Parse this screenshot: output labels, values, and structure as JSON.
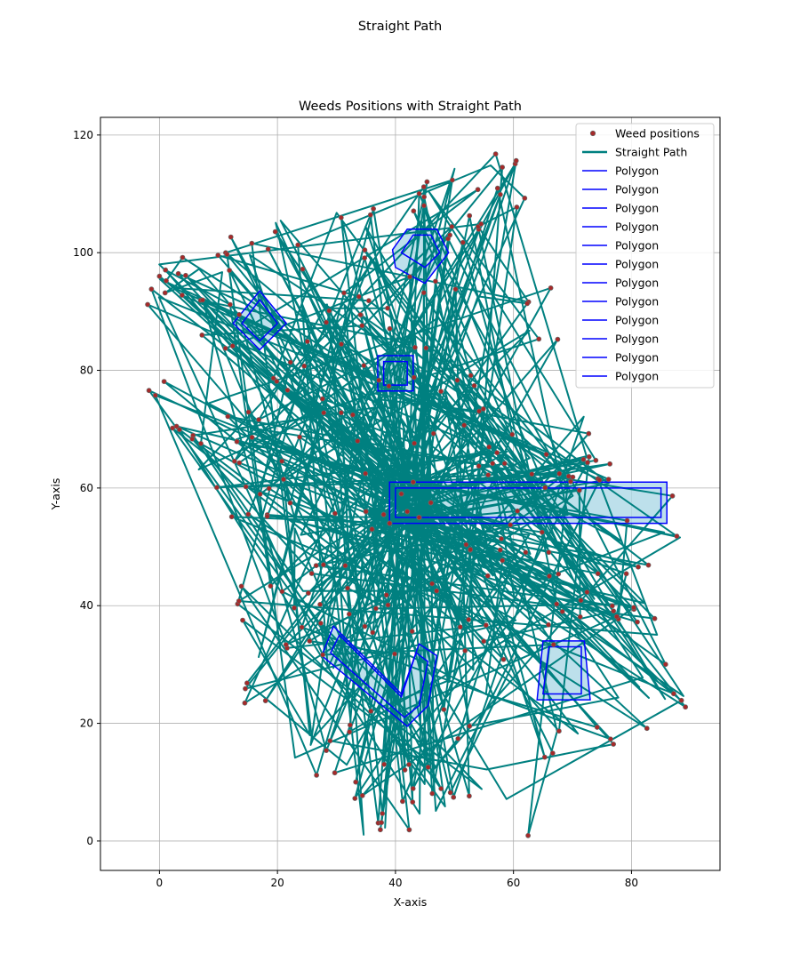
{
  "figure_title": "Straight Path",
  "chart_data": {
    "type": "scatter",
    "title": "Weeds Positions with Straight Path",
    "xlabel": "X-axis",
    "ylabel": "Y-axis",
    "xlim": [
      -10,
      95
    ],
    "ylim": [
      -5,
      123
    ],
    "xticks": [
      "0",
      "20",
      "40",
      "60",
      "80"
    ],
    "yticks": [
      "0",
      "20",
      "40",
      "60",
      "80",
      "100",
      "120"
    ],
    "grid": true,
    "legend_position": "top-right",
    "colors": {
      "weeds": "#a52a2a",
      "weed_edge": "#607070",
      "path": "#008080",
      "polygon": "#0000ff",
      "polygon_fill": "#add8e6"
    },
    "legend": [
      "Weed positions",
      "Straight Path",
      "Polygon",
      "Polygon",
      "Polygon",
      "Polygon",
      "Polygon",
      "Polygon",
      "Polygon",
      "Polygon",
      "Polygon",
      "Polygon",
      "Polygon",
      "Polygon"
    ],
    "polygons": [
      {
        "name": "Polygon",
        "points": [
          [
            40,
            97.5
          ],
          [
            45,
            94.8
          ],
          [
            49,
            100
          ],
          [
            47,
            104
          ],
          [
            42,
            104
          ],
          [
            39.5,
            100.5
          ]
        ]
      },
      {
        "name": "Polygon",
        "points": [
          [
            41,
            100
          ],
          [
            45,
            97.5
          ],
          [
            47.5,
            100
          ],
          [
            46,
            103
          ],
          [
            43,
            103
          ]
        ]
      },
      {
        "name": "Polygon",
        "points": [
          [
            12.5,
            88
          ],
          [
            17,
            93.5
          ],
          [
            21.5,
            88
          ],
          [
            17,
            83.5
          ]
        ]
      },
      {
        "name": "Polygon",
        "points": [
          [
            14,
            88
          ],
          [
            17,
            92
          ],
          [
            20,
            88
          ],
          [
            17,
            85
          ]
        ]
      },
      {
        "name": "Polygon",
        "points": [
          [
            37,
            82.5
          ],
          [
            43,
            82.5
          ],
          [
            43,
            76.5
          ],
          [
            37,
            76.5
          ]
        ]
      },
      {
        "name": "Polygon",
        "points": [
          [
            38,
            81.5
          ],
          [
            42,
            81.5
          ],
          [
            42,
            77.5
          ],
          [
            38,
            77.5
          ]
        ]
      },
      {
        "name": "Polygon",
        "points": [
          [
            39,
            61
          ],
          [
            86,
            61
          ],
          [
            86,
            54
          ],
          [
            39,
            54
          ]
        ]
      },
      {
        "name": "Polygon",
        "points": [
          [
            40,
            60
          ],
          [
            85,
            60
          ],
          [
            85,
            55
          ],
          [
            40,
            55
          ]
        ]
      },
      {
        "name": "Polygon",
        "points": [
          [
            27.5,
            31.5
          ],
          [
            29.5,
            36.5
          ],
          [
            41,
            25
          ],
          [
            44,
            33.5
          ],
          [
            47,
            31.5
          ],
          [
            45.5,
            23
          ],
          [
            42,
            19.5
          ]
        ]
      },
      {
        "name": "Polygon",
        "points": [
          [
            29,
            32
          ],
          [
            30.5,
            35
          ],
          [
            41,
            24.5
          ],
          [
            43.5,
            32
          ],
          [
            45.5,
            30.5
          ],
          [
            44,
            23
          ],
          [
            41.5,
            21
          ]
        ]
      },
      {
        "name": "Polygon",
        "points": [
          [
            65,
            34
          ],
          [
            72,
            34
          ],
          [
            73,
            24
          ],
          [
            64,
            24
          ]
        ]
      },
      {
        "name": "Polygon",
        "points": [
          [
            66,
            33
          ],
          [
            71.5,
            33
          ],
          [
            71.5,
            25
          ],
          [
            65,
            25
          ]
        ]
      }
    ],
    "hub_points": [
      [
        39,
        54
      ],
      [
        36,
        53
      ],
      [
        42,
        56
      ],
      [
        43,
        61
      ],
      [
        41,
        59
      ],
      [
        38,
        55.5
      ],
      [
        46,
        57.5
      ],
      [
        35,
        56
      ],
      [
        44,
        55
      ]
    ],
    "path_anchor_points": [
      [
        0,
        96
      ],
      [
        1.5,
        96.5
      ],
      [
        4,
        98
      ],
      [
        -1.5,
        90
      ],
      [
        1,
        77
      ],
      [
        5,
        70
      ],
      [
        8,
        65
      ],
      [
        9,
        97
      ],
      [
        13,
        91
      ],
      [
        15,
        101
      ],
      [
        20,
        103
      ],
      [
        24,
        104
      ],
      [
        30,
        108
      ],
      [
        38,
        106
      ],
      [
        42,
        109
      ],
      [
        47,
        112
      ],
      [
        50,
        115
      ],
      [
        52,
        113
      ],
      [
        55,
        112
      ],
      [
        58,
        117
      ],
      [
        60,
        110
      ],
      [
        62,
        98
      ],
      [
        64,
        93
      ],
      [
        65,
        88
      ],
      [
        70,
        70
      ],
      [
        72,
        66
      ],
      [
        75,
        63
      ],
      [
        76,
        62
      ],
      [
        86,
        61.5
      ],
      [
        86,
        53.5
      ],
      [
        82,
        38
      ],
      [
        83,
        30
      ],
      [
        87,
        25
      ],
      [
        85,
        23
      ],
      [
        80,
        22
      ],
      [
        77,
        19
      ],
      [
        72,
        17
      ],
      [
        68,
        16
      ],
      [
        64,
        13
      ],
      [
        60,
        1
      ],
      [
        56,
        10
      ],
      [
        50,
        10
      ],
      [
        48,
        7
      ],
      [
        44,
        5.5
      ],
      [
        40,
        4
      ],
      [
        36,
        0.5
      ],
      [
        36.5,
        2
      ],
      [
        32,
        10
      ],
      [
        28,
        16
      ],
      [
        24,
        11.5
      ],
      [
        22,
        26
      ],
      [
        18,
        30
      ],
      [
        17,
        24
      ],
      [
        12,
        38.5
      ],
      [
        13,
        46
      ],
      [
        15,
        52
      ],
      [
        12,
        62
      ],
      [
        11,
        75
      ],
      [
        20,
        80
      ],
      [
        24,
        95
      ],
      [
        27,
        90
      ],
      [
        33,
        93
      ],
      [
        36,
        89
      ],
      [
        37,
        74
      ],
      [
        35,
        70
      ],
      [
        33,
        64
      ],
      [
        30,
        58
      ],
      [
        26,
        48
      ],
      [
        24,
        35
      ],
      [
        29,
        27
      ],
      [
        33,
        18
      ],
      [
        38,
        12
      ],
      [
        45,
        14
      ],
      [
        49,
        22
      ],
      [
        52,
        30
      ],
      [
        55,
        38
      ],
      [
        58,
        45
      ],
      [
        63,
        50
      ],
      [
        67,
        46
      ],
      [
        70,
        42
      ],
      [
        74,
        38
      ],
      [
        78,
        35
      ],
      [
        80,
        28
      ],
      [
        60,
        68
      ],
      [
        56,
        72
      ],
      [
        52,
        78
      ],
      [
        48,
        85
      ],
      [
        53,
        92
      ],
      [
        56,
        97
      ],
      [
        45,
        88
      ],
      [
        41,
        86
      ],
      [
        28,
        83
      ],
      [
        22,
        78
      ],
      [
        16,
        70
      ],
      [
        20,
        64
      ],
      [
        25,
        55
      ],
      [
        31,
        47
      ],
      [
        37,
        42
      ],
      [
        42,
        38
      ],
      [
        47,
        44
      ],
      [
        52,
        48
      ],
      [
        57,
        52
      ],
      [
        62,
        58
      ],
      [
        66,
        63
      ],
      [
        70,
        57
      ],
      [
        73,
        49
      ],
      [
        76,
        44
      ],
      [
        79,
        40
      ],
      [
        66,
        36
      ],
      [
        61,
        30
      ],
      [
        58,
        24
      ],
      [
        54,
        19
      ],
      [
        50,
        15
      ],
      [
        46,
        10
      ],
      [
        43,
        7
      ],
      [
        39,
        12
      ],
      [
        34,
        20
      ],
      [
        31,
        26
      ],
      [
        27,
        30
      ],
      [
        23,
        37
      ],
      [
        19,
        43
      ],
      [
        15,
        58
      ],
      [
        14,
        85
      ],
      [
        8,
        88
      ],
      [
        6,
        92
      ],
      [
        10,
        99
      ],
      [
        26,
        100
      ],
      [
        34,
        102
      ],
      [
        44,
        96
      ],
      [
        50,
        104
      ],
      [
        55,
        106
      ],
      [
        46,
        78
      ],
      [
        50,
        70
      ],
      [
        54,
        65
      ],
      [
        58,
        62
      ],
      [
        44,
        68
      ],
      [
        40,
        73
      ],
      [
        36,
        78
      ],
      [
        32,
        82
      ],
      [
        28,
        74
      ],
      [
        25,
        68
      ],
      [
        21,
        58
      ],
      [
        26,
        44
      ],
      [
        30,
        40
      ],
      [
        35,
        35
      ],
      [
        40,
        30
      ],
      [
        48,
        27
      ],
      [
        53,
        34
      ],
      [
        60,
        40
      ],
      [
        67,
        54
      ],
      [
        71,
        60
      ],
      [
        74,
        56
      ],
      [
        78,
        52
      ],
      [
        81,
        48
      ]
    ]
  }
}
